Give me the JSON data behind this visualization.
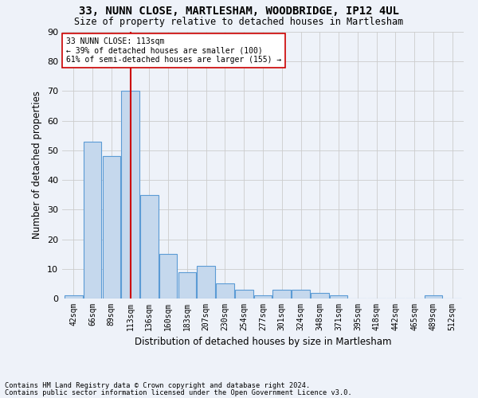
{
  "title_line1": "33, NUNN CLOSE, MARTLESHAM, WOODBRIDGE, IP12 4UL",
  "title_line2": "Size of property relative to detached houses in Martlesham",
  "xlabel": "Distribution of detached houses by size in Martlesham",
  "ylabel": "Number of detached properties",
  "footnote1": "Contains HM Land Registry data © Crown copyright and database right 2024.",
  "footnote2": "Contains public sector information licensed under the Open Government Licence v3.0.",
  "bar_labels": [
    "42sqm",
    "66sqm",
    "89sqm",
    "113sqm",
    "136sqm",
    "160sqm",
    "183sqm",
    "207sqm",
    "230sqm",
    "254sqm",
    "277sqm",
    "301sqm",
    "324sqm",
    "348sqm",
    "371sqm",
    "395sqm",
    "418sqm",
    "442sqm",
    "465sqm",
    "489sqm",
    "512sqm"
  ],
  "bar_values": [
    1,
    53,
    48,
    70,
    35,
    15,
    9,
    11,
    5,
    3,
    1,
    3,
    3,
    2,
    1,
    0,
    0,
    0,
    0,
    1,
    0
  ],
  "bar_color": "#c5d8ed",
  "bar_edge_color": "#5b9bd5",
  "annotation_line1": "33 NUNN CLOSE: 113sqm",
  "annotation_line2": "← 39% of detached houses are smaller (100)",
  "annotation_line3": "61% of semi-detached houses are larger (155) →",
  "vline_color": "#cc0000",
  "annotation_box_color": "#ffffff",
  "annotation_box_edge_color": "#cc0000",
  "ylim": [
    0,
    90
  ],
  "yticks": [
    0,
    10,
    20,
    30,
    40,
    50,
    60,
    70,
    80,
    90
  ],
  "grid_color": "#cccccc",
  "background_color": "#eef2f9",
  "vline_x_index": 3,
  "fig_width": 6.0,
  "fig_height": 5.0,
  "dpi": 100
}
